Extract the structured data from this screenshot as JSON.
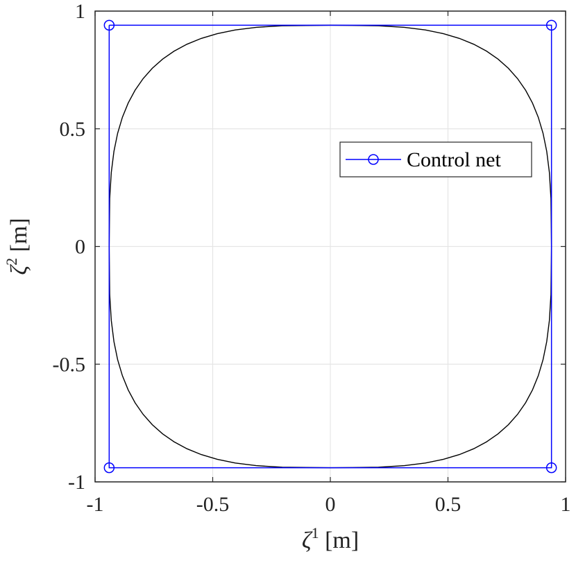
{
  "chart_data": {
    "type": "line",
    "xlabel": {
      "symbol": "ζ",
      "sup": "1",
      "unit": " [m]"
    },
    "ylabel": {
      "symbol": "ζ",
      "sup": "2",
      "unit": " [m]"
    },
    "xlim": [
      -1,
      1
    ],
    "ylim": [
      -1,
      1
    ],
    "xticks": [
      -1,
      -0.5,
      0,
      0.5,
      1
    ],
    "yticks": [
      -1,
      -0.5,
      0,
      0.5,
      1
    ],
    "xtick_labels": [
      "-1",
      "-0.5",
      "0",
      "0.5",
      "1"
    ],
    "ytick_labels": [
      "-1",
      "-0.5",
      "0",
      "0.5",
      "1"
    ],
    "grid": true,
    "legend": {
      "position": "upper-right",
      "entries": [
        "Control net"
      ]
    },
    "series": [
      {
        "name": "Control net",
        "color": "#0000ff",
        "marker": "circle",
        "x": [
          -0.94,
          0.94,
          0.94,
          -0.94,
          -0.94
        ],
        "y": [
          0.94,
          0.94,
          -0.94,
          -0.94,
          0.94
        ]
      },
      {
        "color": "#000000",
        "marker": "none",
        "shape": "rounded square (superellipse) inscribed in control net",
        "half_width": 0.94,
        "exponent": 3.2
      }
    ]
  },
  "colors": {
    "axes": "#262626",
    "grid": "#e5e5e5",
    "control_net": "#0000ff",
    "curve": "#000000"
  }
}
